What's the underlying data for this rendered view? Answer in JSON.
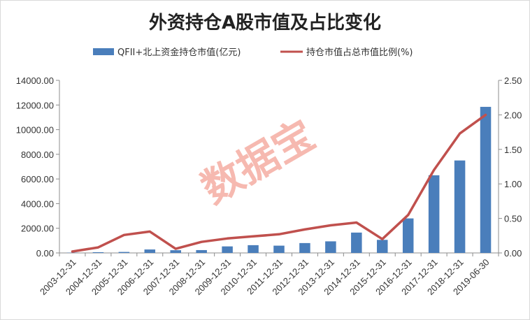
{
  "chart_data": {
    "type": "bar",
    "title": "外资持仓A股市值及占比变化",
    "watermark": "数据宝",
    "legend_position": "top",
    "grid": false,
    "categories": [
      "2003-12-31",
      "2004-12-31",
      "2005-12-31",
      "2006-12-31",
      "2007-12-31",
      "2008-12-31",
      "2009-12-31",
      "2010-12-31",
      "2011-12-31",
      "2012-12-31",
      "2013-12-31",
      "2014-12-31",
      "2015-12-31",
      "2016-12-31",
      "2017-12-31",
      "2018-12-31",
      "2019-06-30"
    ],
    "series": [
      {
        "name": "QFII+北上资金持仓市值(亿元)",
        "type": "bar",
        "axis": "left",
        "color": "#4a7ebb",
        "values": [
          20,
          60,
          80,
          280,
          220,
          230,
          530,
          630,
          590,
          800,
          940,
          1650,
          1060,
          2800,
          6300,
          7500,
          11850
        ]
      },
      {
        "name": "持仓市值占总市值比例(%)",
        "type": "line",
        "axis": "right",
        "color": "#c0504d",
        "values": [
          0.02,
          0.08,
          0.26,
          0.31,
          0.06,
          0.16,
          0.21,
          0.24,
          0.27,
          0.34,
          0.4,
          0.44,
          0.2,
          0.55,
          1.2,
          1.73,
          2.0
        ]
      }
    ],
    "ylim_left": [
      0,
      14000
    ],
    "ylim_right": [
      0,
      2.5
    ],
    "yticks_left": [
      "0.00",
      "2000.00",
      "4000.00",
      "6000.00",
      "8000.00",
      "10000.00",
      "12000.00",
      "14000.00"
    ],
    "yticks_right": [
      "0.00",
      "0.50",
      "1.00",
      "1.50",
      "2.00",
      "2.50"
    ]
  }
}
